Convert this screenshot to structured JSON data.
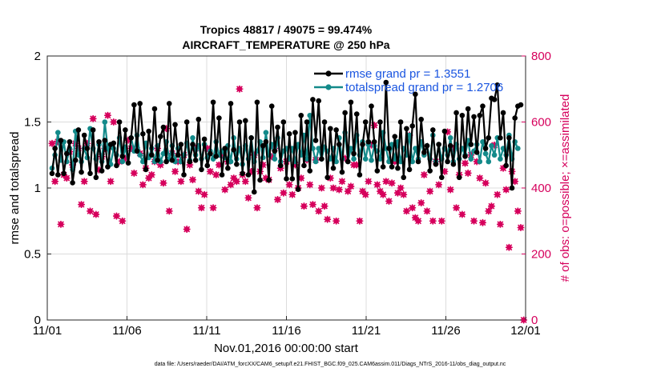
{
  "chart_data": {
    "type": "line",
    "title": "Tropics 48817 / 49075 = 99.474%",
    "subtitle": "AIRCRAFT_TEMPERATURE @ 250 hPa",
    "xlabel": "Nov.01,2016 00:00:00 start",
    "ylabel": "rmse and totalspread",
    "ylabel_right": "# of obs: o=possible; ×=assimilated",
    "footer": "data file: /Users/raeder/DAI/ATM_forcXX/CAM6_setup/f.e21.FHIST_BGC.f09_025.CAM6assim.011/Diags_NTrS_2016-11/obs_diag_output.nc",
    "x_ticks": [
      "11/01",
      "11/06",
      "11/11",
      "11/16",
      "11/21",
      "11/26",
      "12/01"
    ],
    "x_range_days": [
      0,
      30
    ],
    "ylim": [
      0,
      2
    ],
    "y_ticks": [
      "0",
      "0.5",
      "1",
      "1.5",
      "2"
    ],
    "ylim_right": [
      0,
      800
    ],
    "y_ticks_right": [
      "0",
      "200",
      "400",
      "600",
      "800"
    ],
    "legend": [
      {
        "label": "rmse grand pr = 1.3551",
        "color": "#000000"
      },
      {
        "label": "totalspread grand pr = 1.2706",
        "color": "#138a8a"
      }
    ],
    "legend_position": "top-right",
    "grid": true,
    "series": [
      {
        "name": "rmse",
        "color": "#000000",
        "values": [
          1.11,
          1.3,
          1.1,
          1.36,
          1.11,
          1.26,
          1.35,
          1.04,
          1.21,
          1.44,
          1.12,
          1.4,
          1.3,
          1.11,
          1.44,
          1.08,
          1.35,
          1.13,
          1.36,
          1.16,
          1.33,
          1.34,
          1.17,
          1.5,
          1.24,
          1.44,
          1.19,
          1.38,
          1.63,
          1.28,
          1.64,
          1.41,
          1.14,
          1.43,
          1.25,
          1.6,
          1.21,
          1.39,
          1.46,
          1.2,
          1.64,
          1.21,
          1.48,
          1.25,
          1.33,
          1.1,
          1.5,
          1.2,
          1.33,
          1.21,
          1.52,
          1.14,
          1.37,
          1.17,
          1.26,
          1.65,
          1.24,
          1.53,
          1.1,
          1.3,
          1.15,
          1.64,
          1.29,
          1.18,
          1.5,
          1.11,
          1.51,
          1.1,
          1.38,
          0.97,
          1.65,
          1.06,
          1.32,
          1.35,
          1.06,
          1.62,
          1.28,
          1.46,
          1.17,
          1.5,
          1.07,
          1.41,
          1.07,
          1.42,
          0.99,
          1.55,
          1.17,
          1.5,
          1.13,
          1.67,
          1.36,
          1.66,
          1.22,
          1.5,
          1.08,
          1.45,
          1.15,
          1.44,
          1.33,
          1.12,
          1.57,
          1.2,
          1.65,
          1.26,
          1.56,
          1.1,
          1.33,
          1.5,
          1.35,
          1.62,
          1.35,
          1.13,
          1.5,
          1.16,
          1.8,
          1.3,
          1.16,
          1.39,
          1.15,
          1.5,
          1.08,
          1.45,
          1.14,
          1.47,
          1.71,
          1.2,
          1.52,
          1.27,
          1.32,
          1.13,
          1.44,
          1.18,
          1.33,
          1.08,
          1.43,
          1.2,
          1.32,
          1.18,
          1.57,
          1.08,
          1.55,
          1.24,
          1.6,
          1.33,
          1.54,
          1.27,
          1.55,
          1.62,
          1.3,
          1.38,
          1.68,
          1.67,
          1.78,
          1.38,
          1.57,
          1.17,
          1.38,
          1.0,
          1.53,
          1.62,
          1.63
        ]
      },
      {
        "name": "totalspread",
        "color": "#138a8a",
        "values": [
          1.15,
          1.25,
          1.42,
          1.21,
          1.35,
          1.2,
          1.3,
          1.14,
          1.43,
          1.25,
          1.2,
          1.3,
          1.23,
          1.45,
          1.3,
          1.22,
          1.33,
          1.2,
          1.5,
          1.3,
          1.18,
          1.3,
          1.25,
          1.38,
          1.2,
          1.31,
          1.19,
          1.38,
          1.28,
          1.4,
          1.25,
          1.2,
          1.34,
          1.23,
          1.3,
          1.2,
          1.32,
          1.2,
          1.26,
          1.35,
          1.22,
          1.32,
          1.2,
          1.3,
          1.2,
          1.25,
          1.34,
          1.21,
          1.38,
          1.25,
          1.32,
          1.22,
          1.33,
          1.23,
          1.28,
          1.22,
          1.35,
          1.25,
          1.28,
          1.23,
          1.32,
          1.2,
          1.38,
          1.22,
          1.3,
          1.18,
          1.32,
          1.22,
          1.38,
          1.2,
          1.28,
          1.35,
          1.23,
          1.42,
          1.25,
          1.33,
          1.22,
          1.38,
          1.2,
          1.28,
          1.3,
          1.22,
          1.3,
          1.2,
          1.33,
          1.25,
          1.4,
          1.22,
          1.55,
          1.3,
          1.2,
          1.3,
          1.22,
          1.31,
          1.28,
          1.22,
          1.3,
          1.2,
          1.38,
          1.22,
          1.42,
          1.2,
          1.3,
          1.22,
          1.4,
          1.25,
          1.35,
          1.22,
          1.33,
          1.21,
          1.32,
          1.28,
          1.22,
          1.42,
          1.3,
          1.2,
          1.33,
          1.22,
          1.35,
          1.2,
          1.3,
          1.25,
          1.4,
          1.2,
          1.3,
          1.22,
          1.35,
          1.25,
          1.32,
          1.22,
          1.4,
          1.2,
          1.33,
          1.22,
          1.3,
          1.25,
          1.38,
          1.2,
          1.33,
          1.22,
          1.3,
          1.25,
          1.36,
          1.22,
          1.28,
          1.33,
          1.2,
          1.35,
          1.26,
          1.2,
          1.32,
          1.25,
          1.38,
          1.22,
          1.3,
          1.25,
          1.4,
          1.22,
          1.35,
          1.3
        ]
      },
      {
        "name": "obs possible / assimilated",
        "color": "#d6005c",
        "axis": "right",
        "values": [
          535,
          420,
          540,
          290,
          440,
          430,
          510,
          470,
          535,
          520,
          350,
          420,
          535,
          330,
          610,
          320,
          455,
          495,
          520,
          620,
          420,
          600,
          315,
          480,
          300,
          490,
          545,
          520,
          445,
          515,
          505,
          410,
          460,
          430,
          440,
          480,
          520,
          470,
          415,
          580,
          330,
          505,
          450,
          480,
          420,
          500,
          275,
          470,
          425,
          520,
          390,
          340,
          380,
          520,
          450,
          340,
          440,
          470,
          500,
          395,
          480,
          410,
          430,
          420,
          700,
          440,
          420,
          370,
          450,
          500,
          340,
          450,
          470,
          430,
          425,
          495,
          520,
          365,
          460,
          385,
          480,
          410,
          380,
          470,
          400,
          430,
          345,
          485,
          410,
          350,
          485,
          330,
          400,
          345,
          305,
          430,
          400,
          300,
          395,
          420,
          490,
          390,
          405,
          470,
          470,
          300,
          390,
          380,
          420,
          530,
          590,
          410,
          390,
          380,
          420,
          360,
          415,
          480,
          385,
          400,
          380,
          330,
          560,
          340,
          310,
          300,
          355,
          440,
          330,
          390,
          300,
          480,
          410,
          300,
          450,
          570,
          395,
          520,
          340,
          440,
          320,
          475,
          445,
          500,
          300,
          480,
          430,
          295,
          415,
          330,
          345,
          530,
          380,
          290,
          460,
          395,
          220,
          450,
          420,
          330,
          280,
          0
        ]
      }
    ]
  }
}
